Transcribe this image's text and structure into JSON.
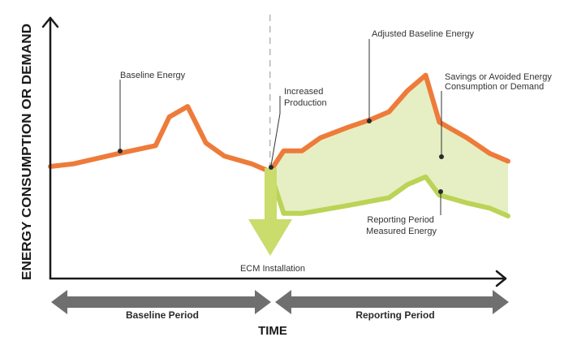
{
  "colors": {
    "baseline": "#EE7B3A",
    "measured": "#BBD356",
    "savings_fill": "#E6EFC3",
    "axis": "#1a1a1a",
    "period_arrow": "#6f6f6f",
    "ecm_arrow": "#C9DC6C",
    "divider": "#b5b5b5"
  },
  "labels": {
    "y_axis": "ENERGY CONSUMPTION OR DEMAND",
    "x_axis": "TIME",
    "baseline_energy": "Baseline Energy",
    "increased_production": [
      "Increased",
      "Production"
    ],
    "adjusted_baseline": "Adjusted Baseline Energy",
    "savings": [
      "Savings or Avoided Energy",
      "Consumption or Demand"
    ],
    "reporting_measured": [
      "Reporting Period",
      "Measured Energy"
    ],
    "ecm_installation": "ECM Installation",
    "baseline_period": "Baseline Period",
    "reporting_period": "Reporting Period"
  },
  "chart_data": {
    "type": "line",
    "x_domain": [
      0,
      100
    ],
    "y_domain": [
      0,
      100
    ],
    "ecm_x": 48,
    "series": [
      {
        "name": "Baseline Energy",
        "points": [
          [
            0,
            43
          ],
          [
            5,
            44
          ],
          [
            15,
            48
          ],
          [
            23,
            51
          ],
          [
            26,
            62
          ],
          [
            30,
            66
          ],
          [
            34,
            52
          ],
          [
            38,
            47
          ],
          [
            44,
            44
          ],
          [
            48,
            41
          ]
        ]
      },
      {
        "name": "Adjusted Baseline Energy",
        "points": [
          [
            48,
            41
          ],
          [
            51,
            49
          ],
          [
            55,
            49
          ],
          [
            59,
            54
          ],
          [
            65,
            58
          ],
          [
            70,
            61
          ],
          [
            74,
            64
          ],
          [
            78,
            72
          ],
          [
            82,
            78
          ],
          [
            85,
            60
          ],
          [
            91,
            54
          ],
          [
            96,
            48
          ],
          [
            100,
            45
          ]
        ]
      },
      {
        "name": "Reporting Period Measured Energy",
        "points": [
          [
            48,
            41
          ],
          [
            51,
            25
          ],
          [
            55,
            25
          ],
          [
            65,
            28
          ],
          [
            74,
            31
          ],
          [
            78,
            36
          ],
          [
            82,
            39
          ],
          [
            85,
            32
          ],
          [
            91,
            29
          ],
          [
            96,
            27
          ],
          [
            100,
            24
          ]
        ]
      }
    ]
  }
}
